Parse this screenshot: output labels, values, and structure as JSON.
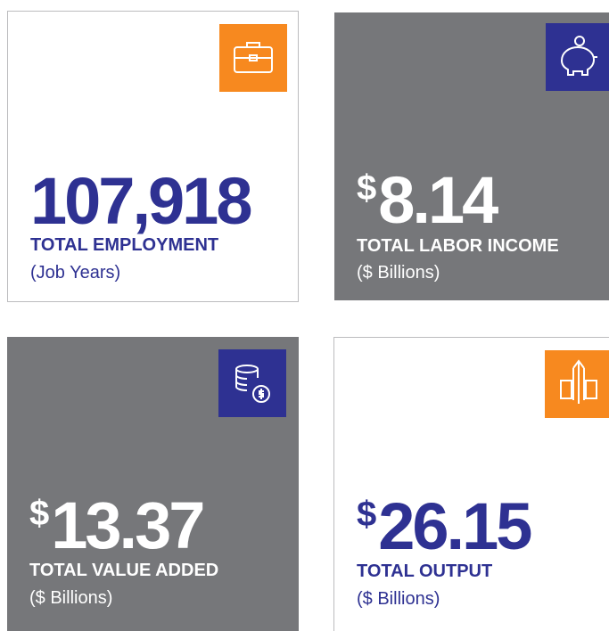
{
  "cards": [
    {
      "value": "107,918",
      "label": "TOTAL EMPLOYMENT",
      "unit": "(Job Years)"
    },
    {
      "prefix": "$",
      "value": "8.14",
      "label": "TOTAL LABOR INCOME",
      "unit": "($ Billions)"
    },
    {
      "prefix": "$",
      "value": "13.37",
      "label": "TOTAL VALUE ADDED",
      "unit": "($ Billions)"
    },
    {
      "prefix": "$",
      "value": "26.15",
      "label": "TOTAL OUTPUT",
      "unit": "($ Billions)"
    }
  ]
}
